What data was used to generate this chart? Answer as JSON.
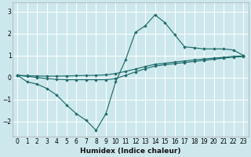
{
  "xlabel": "Humidex (Indice chaleur)",
  "background_color": "#cde8ec",
  "grid_color": "#ffffff",
  "line_color": "#1e6b6b",
  "xlim": [
    -0.5,
    23.5
  ],
  "ylim": [
    -2.7,
    3.4
  ],
  "yticks": [
    -2,
    -1,
    0,
    1,
    2,
    3
  ],
  "xticks": [
    0,
    1,
    2,
    3,
    4,
    5,
    6,
    7,
    8,
    9,
    10,
    11,
    12,
    13,
    14,
    15,
    16,
    17,
    18,
    19,
    20,
    21,
    22,
    23
  ],
  "line1_x": [
    0,
    1,
    2,
    3,
    4,
    5,
    6,
    7,
    8,
    9,
    10,
    11,
    12,
    13,
    14,
    15,
    16,
    17,
    18,
    19,
    20,
    21,
    22,
    23
  ],
  "line1_y": [
    0.1,
    -0.2,
    -0.3,
    -0.5,
    -0.8,
    -1.25,
    -1.65,
    -1.95,
    -2.4,
    -1.65,
    -0.2,
    0.8,
    2.05,
    2.35,
    2.85,
    2.5,
    1.95,
    1.4,
    1.35,
    1.3,
    1.3,
    1.3,
    1.25,
    1.0
  ],
  "line2_x": [
    0,
    1,
    2,
    3,
    4,
    5,
    6,
    7,
    8,
    9,
    10,
    11,
    12,
    13,
    14,
    15,
    16,
    17,
    18,
    19,
    20,
    21,
    22,
    23
  ],
  "line2_y": [
    0.1,
    0.05,
    0.0,
    -0.05,
    -0.08,
    -0.1,
    -0.1,
    -0.1,
    -0.1,
    -0.1,
    -0.05,
    0.1,
    0.25,
    0.4,
    0.52,
    0.58,
    0.63,
    0.68,
    0.73,
    0.78,
    0.83,
    0.88,
    0.93,
    0.95
  ],
  "line3_x": [
    0,
    1,
    2,
    3,
    4,
    5,
    6,
    7,
    8,
    9,
    10,
    11,
    12,
    13,
    14,
    15,
    16,
    17,
    18,
    19,
    20,
    21,
    22,
    23
  ],
  "line3_y": [
    0.1,
    0.08,
    0.07,
    0.06,
    0.06,
    0.07,
    0.08,
    0.09,
    0.1,
    0.12,
    0.18,
    0.28,
    0.38,
    0.5,
    0.6,
    0.65,
    0.7,
    0.75,
    0.8,
    0.84,
    0.88,
    0.92,
    0.96,
    0.98
  ]
}
